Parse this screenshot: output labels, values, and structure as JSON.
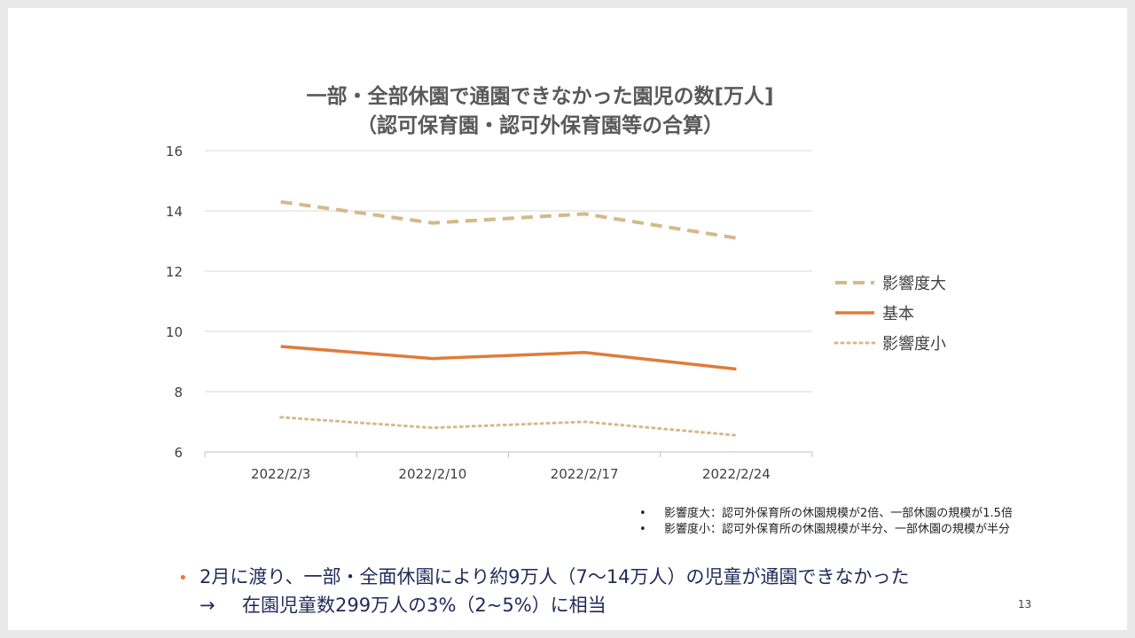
{
  "chart_data": {
    "type": "line",
    "title": "一部・全部休園で通園できなかった園児の数[万人]",
    "subtitle": "（認可保育園・認可外保育園等の合算）",
    "categories": [
      "2022/2/3",
      "2022/2/10",
      "2022/2/17",
      "2022/2/24"
    ],
    "ylim": [
      6,
      16
    ],
    "yticks": [
      "6",
      "8",
      "10",
      "12",
      "14",
      "16"
    ],
    "grid": true,
    "legend_position": "right",
    "series": [
      {
        "name": "影響度大",
        "values": [
          14.3,
          13.6,
          13.9,
          13.1
        ],
        "color": "#d4b98a",
        "style": "dashed"
      },
      {
        "name": "基本",
        "values": [
          9.5,
          9.1,
          9.3,
          8.75
        ],
        "color": "#e07b39",
        "style": "solid"
      },
      {
        "name": "影響度小",
        "values": [
          7.15,
          6.8,
          7.0,
          6.55
        ],
        "color": "#d4b98a",
        "style": "dotted"
      }
    ]
  },
  "notes": [
    {
      "bullet": "•",
      "text": "影響度大：認可外保育所の休園規模が2倍、一部休園の規模が1.5倍"
    },
    {
      "bullet": "•",
      "text": "影響度小：認可外保育所の休園規模が半分、一部休園の規模が半分"
    }
  ],
  "bullet": {
    "mark": "•",
    "line1": "2月に渡り、一部・全面休園により約9万人（7〜14万人）の児童が通園できなかった",
    "arrow": "→",
    "line2": "在園児童数299万人の3%（2~5%）に相当",
    "mark_color": "#e07b39",
    "text_color": "#1f2a5a"
  },
  "page_number": "13"
}
